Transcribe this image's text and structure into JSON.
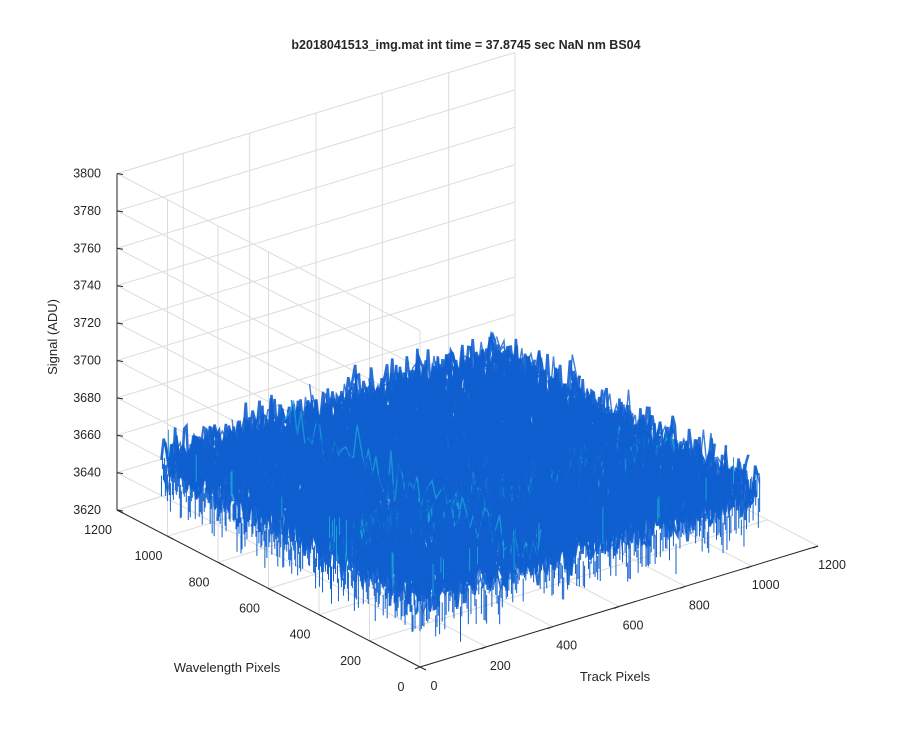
{
  "chart_data": {
    "type": "surface",
    "title": "b2018041513_img.mat int time = 37.8745 sec  NaN nm BS04",
    "xlabel": "Track Pixels",
    "ylabel": "Wavelength Pixels",
    "zlabel": "Signal (ADU)",
    "xlim": [
      0,
      1200
    ],
    "ylim": [
      0,
      1200
    ],
    "zlim": [
      3620,
      3800
    ],
    "x_ticks": [
      "0",
      "200",
      "400",
      "600",
      "800",
      "1000",
      "1200"
    ],
    "y_ticks": [
      "0",
      "200",
      "400",
      "600",
      "800",
      "1000",
      "1200"
    ],
    "z_ticks": [
      "3620",
      "3640",
      "3660",
      "3680",
      "3700",
      "3720",
      "3740",
      "3760",
      "3780",
      "3800"
    ],
    "grid": true,
    "colormap": "parula",
    "surface_extent": {
      "track_pixels": [
        0,
        1024
      ],
      "wavelength_pixels": [
        0,
        1024
      ]
    },
    "signal_mean": 3660,
    "signal_range": [
      3638,
      3712
    ],
    "colors": {
      "low": "#0f5fd0",
      "mid": "#1aa0d8",
      "high": "#5fc8a0"
    }
  }
}
